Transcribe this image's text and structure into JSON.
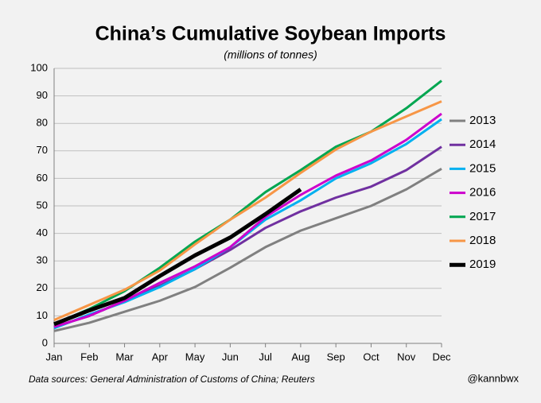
{
  "chart_data": {
    "type": "line",
    "title": "China’s Cumulative Soybean Imports",
    "subtitle": "(millions of tonnes)",
    "source": "Data sources: General Administration of Customs of China; Reuters",
    "credit": "@kannbwx",
    "categories": [
      "Jan",
      "Feb",
      "Mar",
      "Apr",
      "May",
      "Jun",
      "Jul",
      "Aug",
      "Sep",
      "Oct",
      "Nov",
      "Dec"
    ],
    "ylim": [
      0,
      100
    ],
    "yticks": [
      0,
      10,
      20,
      30,
      40,
      50,
      60,
      70,
      80,
      90,
      100
    ],
    "grid": true,
    "legend": "right",
    "series": [
      {
        "name": "2013",
        "color": "#808080",
        "values": [
          4.5,
          7.5,
          11.5,
          15.5,
          20.5,
          27.5,
          35,
          41,
          45.5,
          50,
          56,
          63.5
        ]
      },
      {
        "name": "2014",
        "color": "#7030a0",
        "values": [
          6,
          10,
          15.5,
          21,
          27,
          34,
          42,
          48,
          53,
          57,
          63,
          71.5
        ]
      },
      {
        "name": "2015",
        "color": "#00b0f0",
        "values": [
          5.5,
          10.5,
          15,
          20.5,
          27,
          35,
          45,
          52,
          60,
          65.5,
          72.5,
          81.5
        ]
      },
      {
        "name": "2016",
        "color": "#cc00cc",
        "values": [
          6,
          10,
          15.5,
          22,
          28,
          35,
          46,
          54,
          61,
          66.5,
          74,
          83.5
        ]
      },
      {
        "name": "2017",
        "color": "#00a650",
        "values": [
          7,
          12.5,
          19,
          27.5,
          37,
          45,
          55,
          63,
          71.5,
          77,
          85.5,
          95.5
        ]
      },
      {
        "name": "2018",
        "color": "#f79646",
        "values": [
          8.5,
          14,
          19.5,
          26.5,
          36,
          45,
          53,
          62,
          70.5,
          77,
          82.5,
          88
        ]
      },
      {
        "name": "2019",
        "color": "#000000",
        "values": [
          7,
          12,
          16.5,
          24.5,
          32,
          38.5,
          47,
          56,
          null,
          null,
          null,
          null
        ]
      }
    ]
  }
}
